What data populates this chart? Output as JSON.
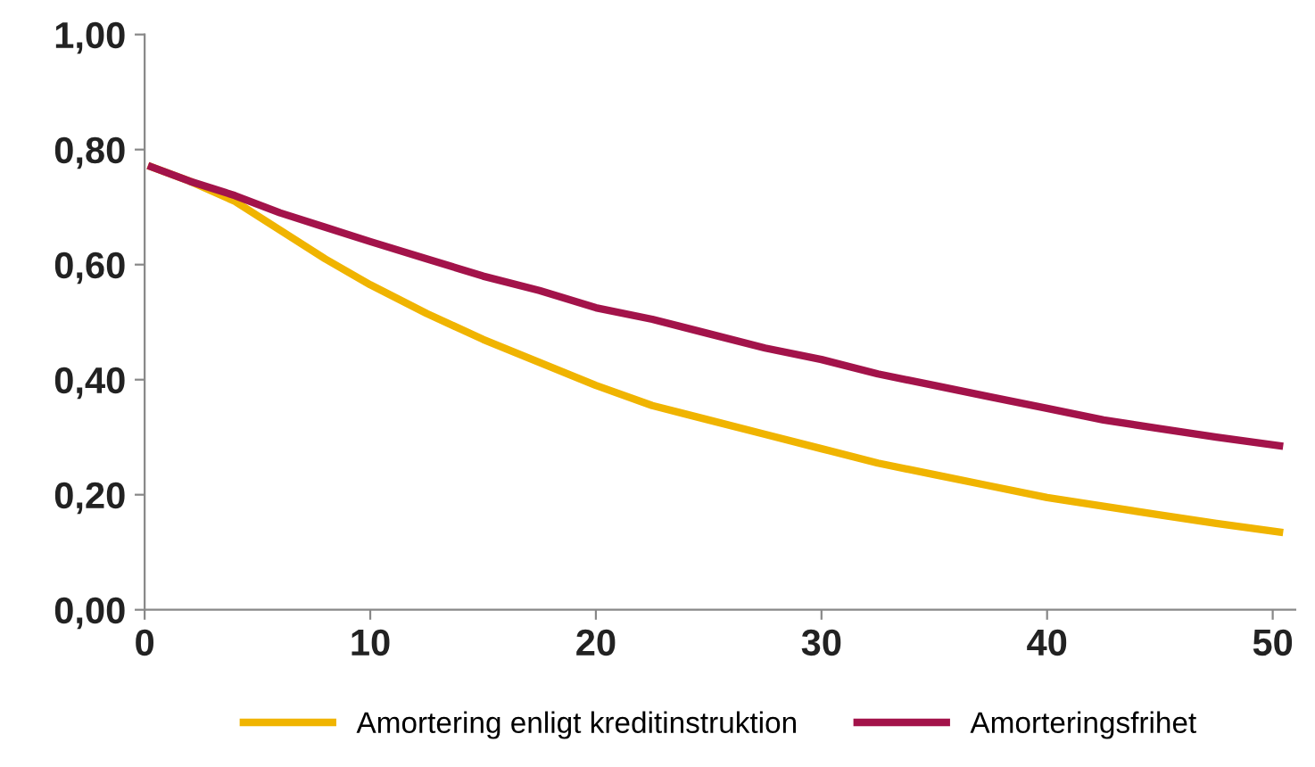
{
  "chart_data": {
    "type": "line",
    "x": [
      0.3,
      2,
      4,
      6,
      8,
      10,
      12.5,
      15,
      17.5,
      20,
      22.5,
      25,
      27.5,
      30,
      32.5,
      35,
      37.5,
      40,
      42.5,
      45,
      47.5,
      50.3
    ],
    "series": [
      {
        "name": "Amortering enligt kreditinstruktion",
        "color": "#f0b400",
        "values": [
          0.77,
          0.745,
          0.71,
          0.66,
          0.61,
          0.565,
          0.515,
          0.47,
          0.43,
          0.39,
          0.355,
          0.33,
          0.305,
          0.28,
          0.255,
          0.235,
          0.215,
          0.195,
          0.18,
          0.165,
          0.15,
          0.135
        ]
      },
      {
        "name": "Amorteringsfrihet",
        "color": "#a3134a",
        "values": [
          0.77,
          0.745,
          0.72,
          0.69,
          0.665,
          0.64,
          0.61,
          0.58,
          0.555,
          0.525,
          0.505,
          0.48,
          0.455,
          0.435,
          0.41,
          0.39,
          0.37,
          0.35,
          0.33,
          0.315,
          0.3,
          0.285
        ]
      }
    ],
    "xlim": [
      0,
      51
    ],
    "xticks": [
      0,
      10,
      20,
      30,
      40,
      50
    ],
    "ylim": [
      0,
      1
    ],
    "yticks": [
      {
        "value": 0,
        "label": "0,00"
      },
      {
        "value": 0.2,
        "label": "0,20"
      },
      {
        "value": 0.4,
        "label": "0,40"
      },
      {
        "value": 0.6,
        "label": "0,60"
      },
      {
        "value": 0.8,
        "label": "0,80"
      },
      {
        "value": 1,
        "label": "1,00"
      }
    ],
    "legend": "bottom",
    "grid": false
  }
}
